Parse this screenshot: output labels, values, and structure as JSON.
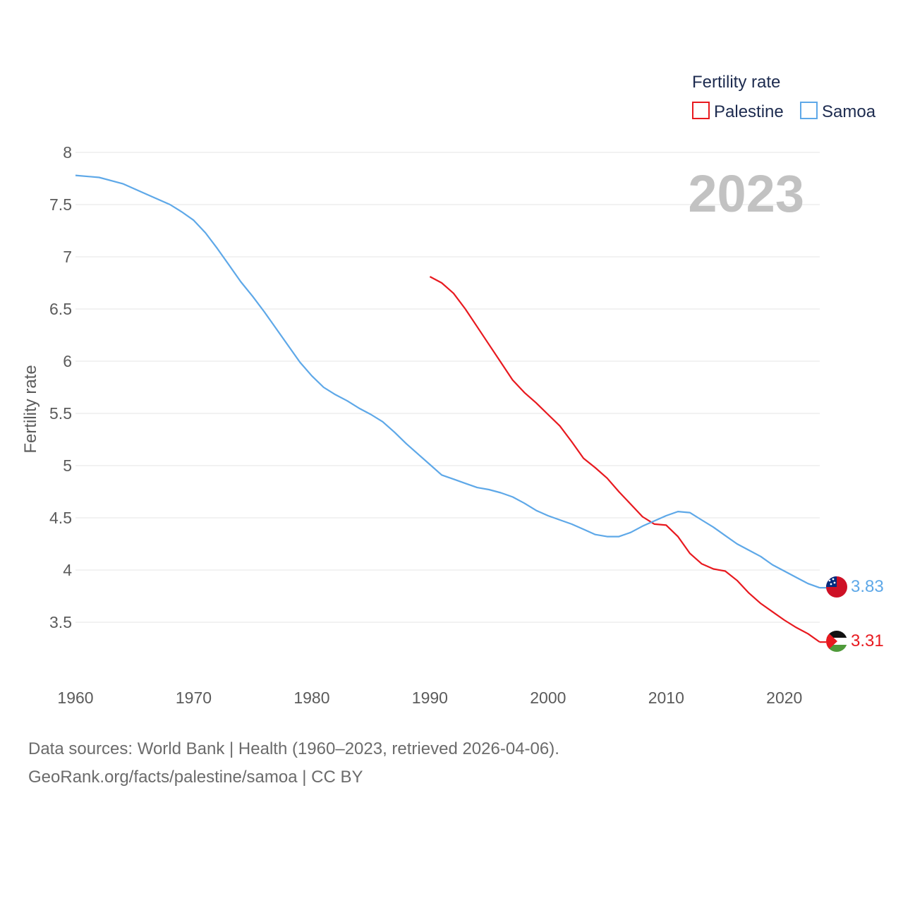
{
  "legend": {
    "title": "Fertility rate",
    "items": [
      {
        "label": "Palestine",
        "color": "#e8191f"
      },
      {
        "label": "Samoa",
        "color": "#5ea8e8"
      }
    ]
  },
  "year_display": "2023",
  "source": {
    "line1": "Data sources: World Bank | Health (1960–2023, retrieved 2026-04-06).",
    "line2": "GeoRank.org/facts/palestine/samoa | CC BY"
  },
  "chart_data": {
    "type": "line",
    "title": "Fertility rate",
    "xlabel": "",
    "ylabel": "Fertility rate",
    "xlim": [
      1960,
      2023
    ],
    "ylim": [
      3.0,
      8.0
    ],
    "x_ticks": [
      1960,
      1970,
      1980,
      1990,
      2000,
      2010,
      2020
    ],
    "y_ticks": [
      3.5,
      4,
      4.5,
      5,
      5.5,
      6,
      6.5,
      7,
      7.5,
      8
    ],
    "y_tick_labels": [
      "3.5",
      "4",
      "4.5",
      "5",
      "5.5",
      "6",
      "6.5",
      "7",
      "7.5",
      "8"
    ],
    "x_tick_labels": [
      "1960",
      "1970",
      "1980",
      "1990",
      "2000",
      "2010",
      "2020"
    ],
    "grid": true,
    "legend_position": "top-right",
    "series": [
      {
        "name": "Palestine",
        "color": "#e8191f",
        "end_label": "3.31",
        "points": [
          [
            1990,
            6.81
          ],
          [
            1991,
            6.75
          ],
          [
            1992,
            6.65
          ],
          [
            1993,
            6.5
          ],
          [
            1994,
            6.33
          ],
          [
            1995,
            6.16
          ],
          [
            1996,
            5.99
          ],
          [
            1997,
            5.82
          ],
          [
            1998,
            5.7
          ],
          [
            1999,
            5.6
          ],
          [
            2000,
            5.49
          ],
          [
            2001,
            5.38
          ],
          [
            2002,
            5.23
          ],
          [
            2003,
            5.07
          ],
          [
            2004,
            4.98
          ],
          [
            2005,
            4.88
          ],
          [
            2006,
            4.75
          ],
          [
            2007,
            4.63
          ],
          [
            2008,
            4.51
          ],
          [
            2009,
            4.44
          ],
          [
            2010,
            4.43
          ],
          [
            2011,
            4.32
          ],
          [
            2012,
            4.16
          ],
          [
            2013,
            4.06
          ],
          [
            2014,
            4.01
          ],
          [
            2015,
            3.99
          ],
          [
            2016,
            3.9
          ],
          [
            2017,
            3.78
          ],
          [
            2018,
            3.68
          ],
          [
            2019,
            3.6
          ],
          [
            2020,
            3.52
          ],
          [
            2021,
            3.45
          ],
          [
            2022,
            3.39
          ],
          [
            2023,
            3.31
          ]
        ]
      },
      {
        "name": "Samoa",
        "color": "#5ea8e8",
        "end_label": "3.83",
        "points": [
          [
            1960,
            7.78
          ],
          [
            1962,
            7.76
          ],
          [
            1964,
            7.7
          ],
          [
            1966,
            7.6
          ],
          [
            1968,
            7.5
          ],
          [
            1969,
            7.43
          ],
          [
            1970,
            7.35
          ],
          [
            1971,
            7.23
          ],
          [
            1972,
            7.08
          ],
          [
            1973,
            6.92
          ],
          [
            1974,
            6.76
          ],
          [
            1975,
            6.62
          ],
          [
            1976,
            6.47
          ],
          [
            1977,
            6.31
          ],
          [
            1978,
            6.15
          ],
          [
            1979,
            5.99
          ],
          [
            1980,
            5.86
          ],
          [
            1981,
            5.75
          ],
          [
            1982,
            5.68
          ],
          [
            1983,
            5.62
          ],
          [
            1984,
            5.55
          ],
          [
            1985,
            5.49
          ],
          [
            1986,
            5.42
          ],
          [
            1987,
            5.32
          ],
          [
            1988,
            5.21
          ],
          [
            1989,
            5.11
          ],
          [
            1990,
            5.01
          ],
          [
            1991,
            4.91
          ],
          [
            1992,
            4.87
          ],
          [
            1993,
            4.83
          ],
          [
            1994,
            4.79
          ],
          [
            1995,
            4.77
          ],
          [
            1996,
            4.74
          ],
          [
            1997,
            4.7
          ],
          [
            1998,
            4.64
          ],
          [
            1999,
            4.57
          ],
          [
            2000,
            4.52
          ],
          [
            2001,
            4.48
          ],
          [
            2002,
            4.44
          ],
          [
            2003,
            4.39
          ],
          [
            2004,
            4.34
          ],
          [
            2005,
            4.32
          ],
          [
            2006,
            4.32
          ],
          [
            2007,
            4.36
          ],
          [
            2008,
            4.42
          ],
          [
            2009,
            4.47
          ],
          [
            2010,
            4.52
          ],
          [
            2011,
            4.56
          ],
          [
            2012,
            4.55
          ],
          [
            2013,
            4.48
          ],
          [
            2014,
            4.41
          ],
          [
            2015,
            4.33
          ],
          [
            2016,
            4.25
          ],
          [
            2017,
            4.19
          ],
          [
            2018,
            4.13
          ],
          [
            2019,
            4.05
          ],
          [
            2020,
            3.99
          ],
          [
            2021,
            3.93
          ],
          [
            2022,
            3.87
          ],
          [
            2023,
            3.83
          ]
        ]
      }
    ]
  }
}
